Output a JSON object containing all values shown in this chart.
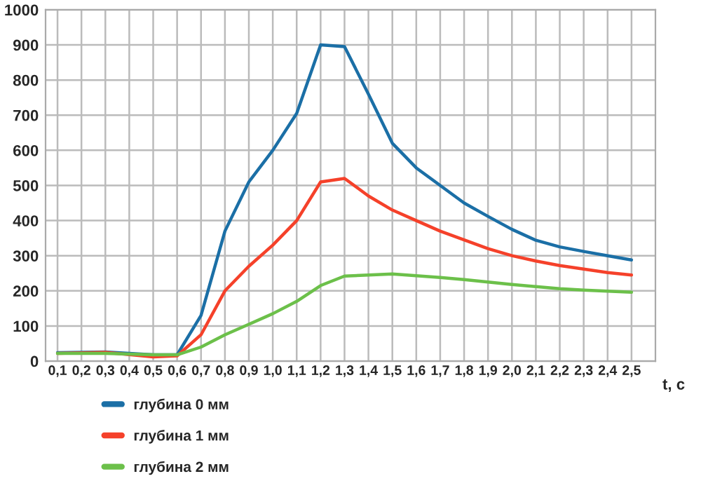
{
  "chart_data": {
    "type": "line",
    "xlabel": "t, c",
    "x": [
      0.1,
      0.3,
      0.5,
      0.6,
      0.7,
      0.8,
      0.9,
      1.0,
      1.1,
      1.2,
      1.3,
      1.4,
      1.5,
      1.6,
      1.7,
      1.8,
      1.9,
      2.0,
      2.1,
      2.2,
      2.3,
      2.4,
      2.5
    ],
    "series": [
      {
        "name": "глубина 0 мм",
        "color": "#1b6fa6",
        "values": [
          24,
          26,
          18,
          18,
          130,
          370,
          510,
          600,
          705,
          900,
          895,
          760,
          620,
          550,
          500,
          450,
          412,
          375,
          344,
          325,
          312,
          300,
          288
        ]
      },
      {
        "name": "глубина 1 мм",
        "color": "#f5412a",
        "values": [
          22,
          25,
          12,
          15,
          75,
          200,
          270,
          330,
          400,
          510,
          520,
          470,
          430,
          400,
          370,
          345,
          320,
          300,
          285,
          272,
          262,
          252,
          245
        ]
      },
      {
        "name": "глубина 2 мм",
        "color": "#6cc04a",
        "values": [
          22,
          22,
          18,
          18,
          40,
          75,
          105,
          135,
          170,
          215,
          242,
          245,
          248,
          243,
          238,
          232,
          225,
          218,
          212,
          206,
          202,
          199,
          196
        ]
      }
    ],
    "xlim": [
      0.05,
      2.6
    ],
    "xticks": [
      {
        "value": 0.1,
        "label": "0,1"
      },
      {
        "value": 0.2,
        "label": "0,2"
      },
      {
        "value": 0.3,
        "label": "0,3"
      },
      {
        "value": 0.4,
        "label": "0,4"
      },
      {
        "value": 0.5,
        "label": "0,5"
      },
      {
        "value": 0.6,
        "label": "0,6"
      },
      {
        "value": 0.7,
        "label": "0,7"
      },
      {
        "value": 0.8,
        "label": "0,8"
      },
      {
        "value": 0.9,
        "label": "0,9"
      },
      {
        "value": 1.0,
        "label": "1,0"
      },
      {
        "value": 1.1,
        "label": "1,1"
      },
      {
        "value": 1.2,
        "label": "1,2"
      },
      {
        "value": 1.3,
        "label": "1,3"
      },
      {
        "value": 1.4,
        "label": "1,4"
      },
      {
        "value": 1.5,
        "label": "1,5"
      },
      {
        "value": 1.6,
        "label": "1,6"
      },
      {
        "value": 1.7,
        "label": "1,7"
      },
      {
        "value": 1.8,
        "label": "1,8"
      },
      {
        "value": 1.9,
        "label": "1,9"
      },
      {
        "value": 2.0,
        "label": "2,0"
      },
      {
        "value": 2.1,
        "label": "2,1"
      },
      {
        "value": 2.2,
        "label": "2,2"
      },
      {
        "value": 2.3,
        "label": "2,3"
      },
      {
        "value": 2.4,
        "label": "2,4"
      },
      {
        "value": 2.5,
        "label": "2,5"
      }
    ],
    "ylim": [
      0,
      1000
    ],
    "yticks": [
      0,
      100,
      200,
      300,
      400,
      500,
      600,
      700,
      800,
      900,
      1000
    ],
    "grid": true,
    "legend": "bottom left",
    "marker": "none",
    "line_style": "solid"
  }
}
